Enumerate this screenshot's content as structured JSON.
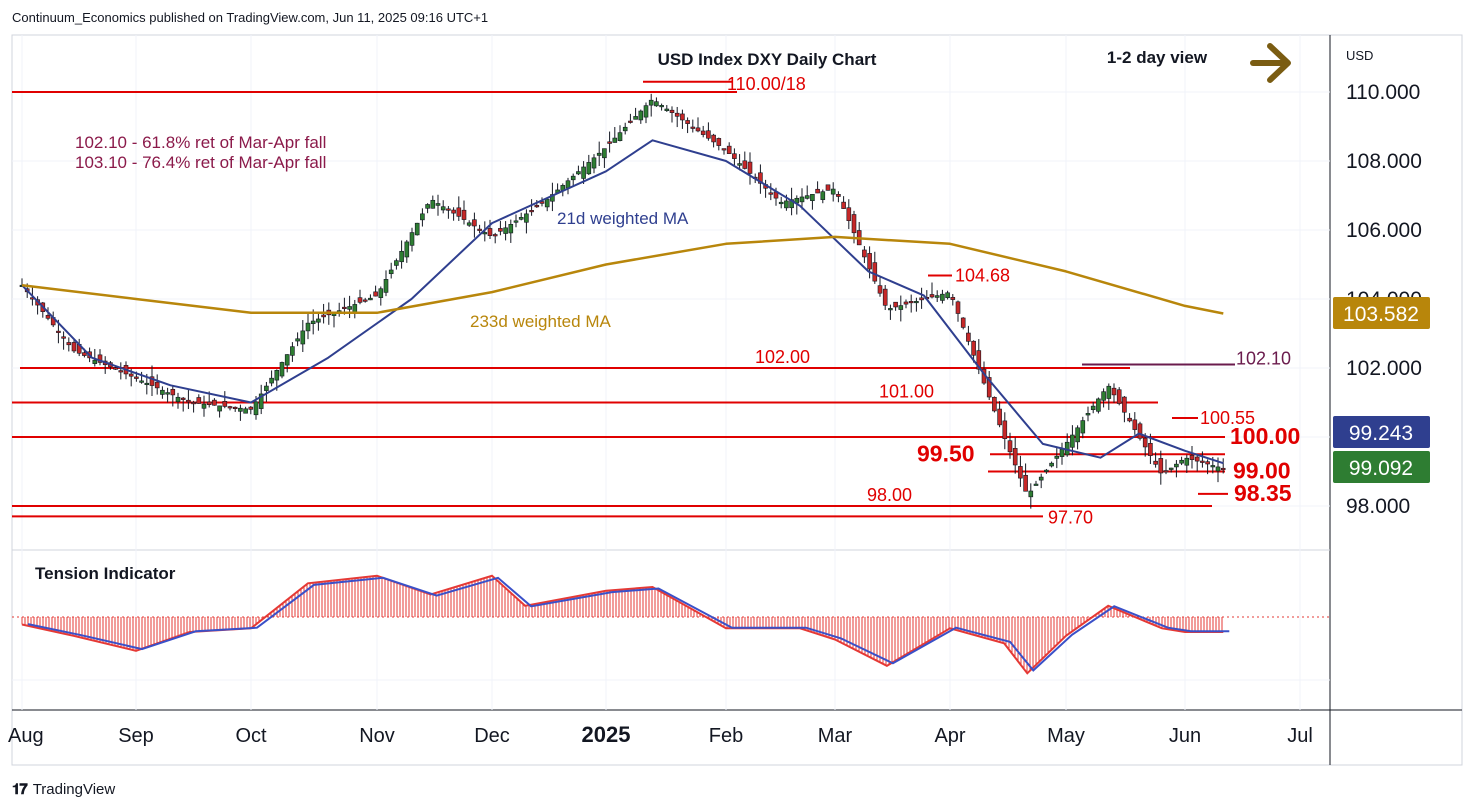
{
  "header": {
    "publisher": "Continuum_Economics published on TradingView.com, Jun 11, 2025 09:16 UTC+1"
  },
  "footer": {
    "brand": "TradingView"
  },
  "colors": {
    "up_candle": "#2e7d32",
    "down_candle": "#c62828",
    "level_line": "#e00000",
    "ma21": "#2f3f8f",
    "ma233": "#b8860b",
    "tension_red": "#e53935",
    "tension_blue": "#3a50c8",
    "last_price_bg": "#2e7d32",
    "ma21_badge_bg": "#2f3f8f",
    "ma233_badge_bg": "#b8860b"
  },
  "chart_data": {
    "type": "line",
    "title": "USD Index DXY Daily Chart",
    "view_label": "1-2 day view",
    "currency_label": "USD",
    "ylim": [
      97.4,
      110.8
    ],
    "y_ticks": [
      "110.000",
      "108.000",
      "106.000",
      "104.000",
      "102.000",
      "100.000",
      "98.000"
    ],
    "x_ticks": [
      "Aug",
      "Sep",
      "Oct",
      "Nov",
      "Dec",
      "2025",
      "Feb",
      "Mar",
      "Apr",
      "May",
      "Jun",
      "Jul"
    ],
    "annotations": {
      "fib_1": "102.10 - 61.8% ret of Mar-Apr fall",
      "fib_2": "103.10 - 76.4% ret of Mar-Apr fall",
      "ma21_label": "21d weighted MA",
      "ma233_label": "233d weighted MA",
      "tension_label": "Tension Indicator",
      "arrow": "right-arrow-icon"
    },
    "levels": [
      {
        "label": "110.00/18",
        "value": 110.0
      },
      {
        "label": "104.68",
        "value": 104.68
      },
      {
        "label": "102.10",
        "value": 102.1
      },
      {
        "label": "102.00",
        "value": 102.0
      },
      {
        "label": "101.00",
        "value": 101.0
      },
      {
        "label": "100.55",
        "value": 100.55
      },
      {
        "label": "100.00",
        "value": 100.0
      },
      {
        "label": "99.50",
        "value": 99.5
      },
      {
        "label": "99.00",
        "value": 99.0
      },
      {
        "label": "98.35",
        "value": 98.35
      },
      {
        "label": "98.00",
        "value": 98.0
      },
      {
        "label": "97.70",
        "value": 97.7
      }
    ],
    "price_badges": {
      "ma233": "103.582",
      "ma21": "99.243",
      "last": "99.092"
    },
    "series": [
      {
        "name": "DXY",
        "dates": [
          "Aug 1",
          "Aug 15",
          "Sep 1",
          "Sep 15",
          "Oct 1",
          "Oct 15",
          "Nov 1",
          "Nov 15",
          "Dec 1",
          "Dec 15",
          "Jan 1",
          "Jan 13",
          "Feb 1",
          "Feb 15",
          "Mar 1",
          "Mar 15",
          "Apr 1",
          "Apr 15",
          "Apr 21",
          "May 1",
          "May 12",
          "May 26",
          "Jun 1",
          "Jun 11"
        ],
        "values": [
          104.4,
          102.5,
          101.7,
          101.0,
          100.8,
          103.3,
          104.1,
          106.9,
          105.8,
          106.8,
          108.4,
          109.8,
          108.3,
          106.8,
          107.2,
          103.7,
          104.2,
          100.0,
          98.3,
          99.8,
          101.5,
          98.9,
          99.4,
          99.09
        ]
      },
      {
        "name": "21d weighted MA",
        "dates": [
          "Aug 1",
          "Aug 20",
          "Sep 10",
          "Oct 1",
          "Oct 20",
          "Nov 10",
          "Dec 1",
          "Jan 1",
          "Jan 13",
          "Feb 1",
          "Feb 20",
          "Mar 10",
          "Mar 25",
          "Apr 10",
          "Apr 25",
          "May 10",
          "May 20",
          "Jun 1",
          "Jun 11"
        ],
        "values": [
          104.4,
          102.3,
          101.5,
          101.0,
          102.3,
          104.0,
          106.2,
          107.7,
          108.6,
          108.0,
          106.7,
          104.8,
          104.1,
          101.8,
          99.8,
          99.4,
          100.1,
          99.6,
          99.24
        ]
      },
      {
        "name": "233d weighted MA",
        "dates": [
          "Aug 1",
          "Sep 1",
          "Oct 1",
          "Nov 1",
          "Dec 1",
          "Jan 1",
          "Feb 1",
          "Mar 1",
          "Apr 1",
          "May 1",
          "Jun 1",
          "Jun 11"
        ],
        "values": [
          104.4,
          104.0,
          103.6,
          103.6,
          104.2,
          105.0,
          105.6,
          105.8,
          105.6,
          104.8,
          103.8,
          103.58
        ]
      }
    ],
    "tension": {
      "dates": [
        "Aug 1",
        "Aug 15",
        "Sep 1",
        "Sep 15",
        "Oct 1",
        "Oct 15",
        "Nov 1",
        "Nov 15",
        "Dec 1",
        "Dec 10",
        "Jan 1",
        "Jan 13",
        "Feb 1",
        "Feb 20",
        "Mar 1",
        "Mar 15",
        "Apr 1",
        "Apr 15",
        "Apr 21",
        "May 1",
        "May 12",
        "May 26",
        "Jun 1",
        "Jun 11"
      ],
      "values": [
        -0.1,
        -0.25,
        -0.45,
        -0.2,
        -0.15,
        0.45,
        0.55,
        0.3,
        0.55,
        0.15,
        0.35,
        0.4,
        -0.15,
        -0.15,
        -0.3,
        -0.65,
        -0.15,
        -0.35,
        -0.75,
        -0.25,
        0.15,
        -0.15,
        -0.2,
        -0.2
      ]
    }
  }
}
